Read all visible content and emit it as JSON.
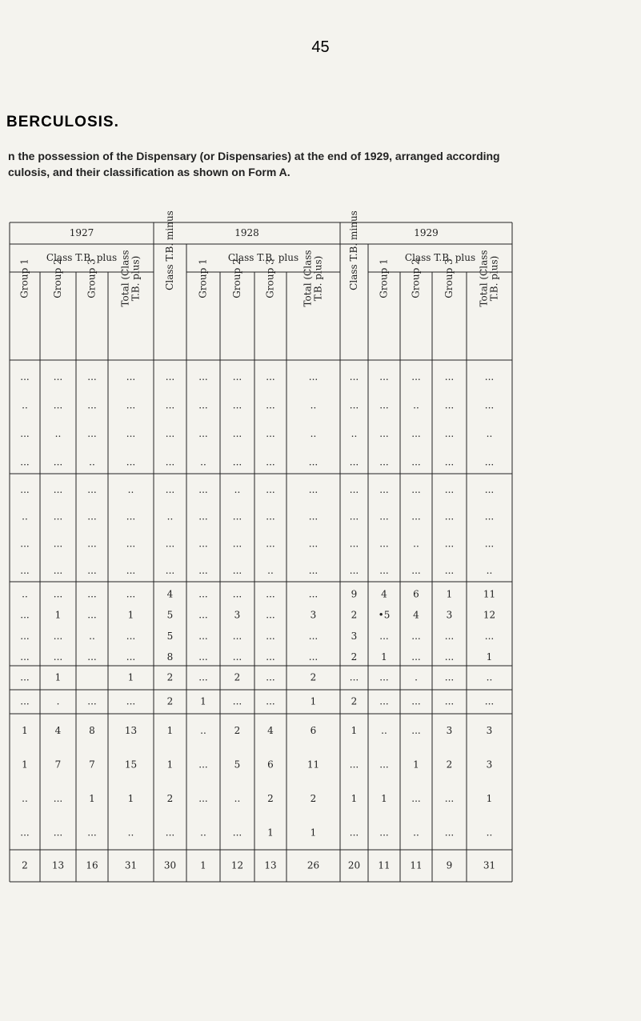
{
  "header": {
    "page_number": "45",
    "title": "BERCULOSIS.",
    "description": [
      "n the possession of the Dispensary (or Dispensaries) at the end of 1929, arranged according",
      "culosis, and their classification as shown on Form A."
    ]
  },
  "table": {
    "years": [
      "1927",
      "1928",
      "1929"
    ],
    "class_plus": [
      "Class T.B. plus",
      "Class T.B. plus",
      "Class T.B. plus"
    ],
    "columns": [
      [
        "Group 1"
      ],
      [
        "Group 2"
      ],
      [
        "Group 3"
      ],
      [
        "Total (Class",
        "T.B. plus)"
      ],
      [
        "Class T.B. minus"
      ],
      [
        "Group 1"
      ],
      [
        "Group 2"
      ],
      [
        "Group 3"
      ],
      [
        "Total (Class",
        "T.B. plus)"
      ],
      [
        "Class T.B. minus"
      ],
      [
        "Group 1"
      ],
      [
        "Group 2"
      ],
      [
        "Group 3"
      ],
      [
        "Total (Class",
        "T.B. plus)"
      ]
    ],
    "groups": [
      [
        [
          "...",
          "...",
          "...",
          "...",
          "...",
          "...",
          "...",
          "...",
          "...",
          "...",
          "...",
          "...",
          "...",
          "..."
        ],
        [
          "..",
          "...",
          "...",
          "...",
          "...",
          "...",
          "...",
          "...",
          "..",
          "...",
          "...",
          "..",
          "...",
          "..."
        ],
        [
          "...",
          "..",
          "...",
          "...",
          "...",
          "...",
          "...",
          "...",
          "..",
          "..",
          "...",
          "...",
          "...",
          ".."
        ],
        [
          "...",
          "...",
          "..",
          "...",
          "...",
          "..",
          "...",
          "...",
          "...",
          "...",
          "...",
          "...",
          "...",
          "..."
        ]
      ],
      [
        [
          "...",
          "...",
          "...",
          "..",
          "...",
          "...",
          "..",
          "...",
          "...",
          "...",
          "...",
          "...",
          "...",
          "..."
        ],
        [
          "..",
          "...",
          "...",
          "...",
          "..",
          "...",
          "...",
          "...",
          "...",
          "...",
          "...",
          "...",
          "...",
          "..."
        ],
        [
          "...",
          "...",
          "...",
          "...",
          "...",
          "...",
          "...",
          "...",
          "...",
          "...",
          "...",
          "..",
          "...",
          "..."
        ],
        [
          "...",
          "...",
          "...",
          "...",
          "...",
          "...",
          "...",
          "..",
          "...",
          "...",
          "...",
          "...",
          "...",
          ".."
        ]
      ],
      [
        [
          "..",
          "...",
          "...",
          "...",
          "4",
          "...",
          "...",
          "...",
          "...",
          "9",
          "4",
          "6",
          "1",
          "11"
        ],
        [
          "...",
          "1",
          "...",
          "1",
          "5",
          "...",
          "3",
          "...",
          "3",
          "2",
          "•5",
          "4",
          "3",
          "12"
        ],
        [
          "...",
          "...",
          "..",
          "...",
          "5",
          "...",
          "...",
          "...",
          "...",
          "3",
          "...",
          "...",
          "...",
          "..."
        ],
        [
          "...",
          "...",
          "...",
          "...",
          "8",
          "...",
          "...",
          "...",
          "...",
          "2",
          "1",
          "...",
          "...",
          "1"
        ]
      ],
      [
        [
          "...",
          "1",
          null,
          "1",
          "2",
          "...",
          "2",
          "...",
          "2",
          "...",
          "...",
          ".",
          "...",
          ".."
        ]
      ],
      [
        [
          "...",
          ".",
          "...",
          "...",
          "2",
          "1",
          "...",
          "...",
          "1",
          "2",
          "...",
          "...",
          "...",
          "..."
        ]
      ],
      [
        [
          "1",
          "4",
          "8",
          "13",
          "1",
          "..",
          "2",
          "4",
          "6",
          "1",
          "..",
          "...",
          "3",
          "3"
        ],
        [
          "1",
          "7",
          "7",
          "15",
          "1",
          "...",
          "5",
          "6",
          "11",
          "...",
          "...",
          "1",
          "2",
          "3"
        ],
        [
          "..",
          "...",
          "1",
          "1",
          "2",
          "...",
          "..",
          "2",
          "2",
          "1",
          "1",
          "...",
          "...",
          "1"
        ],
        [
          "...",
          "...",
          "...",
          "..",
          "...",
          "..",
          "...",
          "1",
          "1",
          "...",
          "...",
          "..",
          "...",
          ".."
        ]
      ],
      [
        [
          "2",
          "13",
          "16",
          "31",
          "30",
          "1",
          "12",
          "13",
          "26",
          "20",
          "11",
          "11",
          "9",
          "31"
        ]
      ]
    ]
  }
}
